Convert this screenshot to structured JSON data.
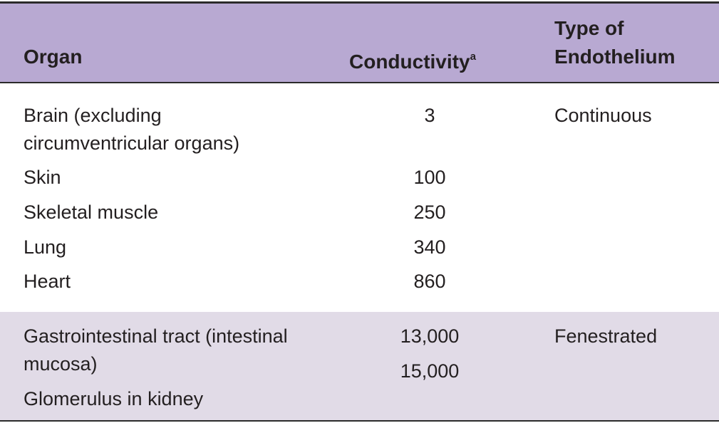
{
  "header": {
    "columns": [
      "Organ",
      "Conductivity",
      "Type of Endothelium"
    ],
    "conductivity_note": "a"
  },
  "groups": [
    {
      "rows": [
        {
          "organ": "Brain (excluding circumventricular organs)",
          "conductivity": "3",
          "endothelium": "Continuous"
        },
        {
          "organ": "Skin",
          "conductivity": "100"
        },
        {
          "organ": "Skeletal muscle",
          "conductivity": "250"
        },
        {
          "organ": "Lung",
          "conductivity": "340"
        },
        {
          "organ": "Heart",
          "conductivity": "860"
        }
      ]
    },
    {
      "rows": [
        {
          "organ": "Gastrointestinal tract (intestinal mucosa)",
          "conductivity": "13,000",
          "endothelium": "Fenestrated"
        },
        {
          "organ": "Glomerulus in kidney",
          "conductivity": "15,000"
        }
      ]
    }
  ]
}
